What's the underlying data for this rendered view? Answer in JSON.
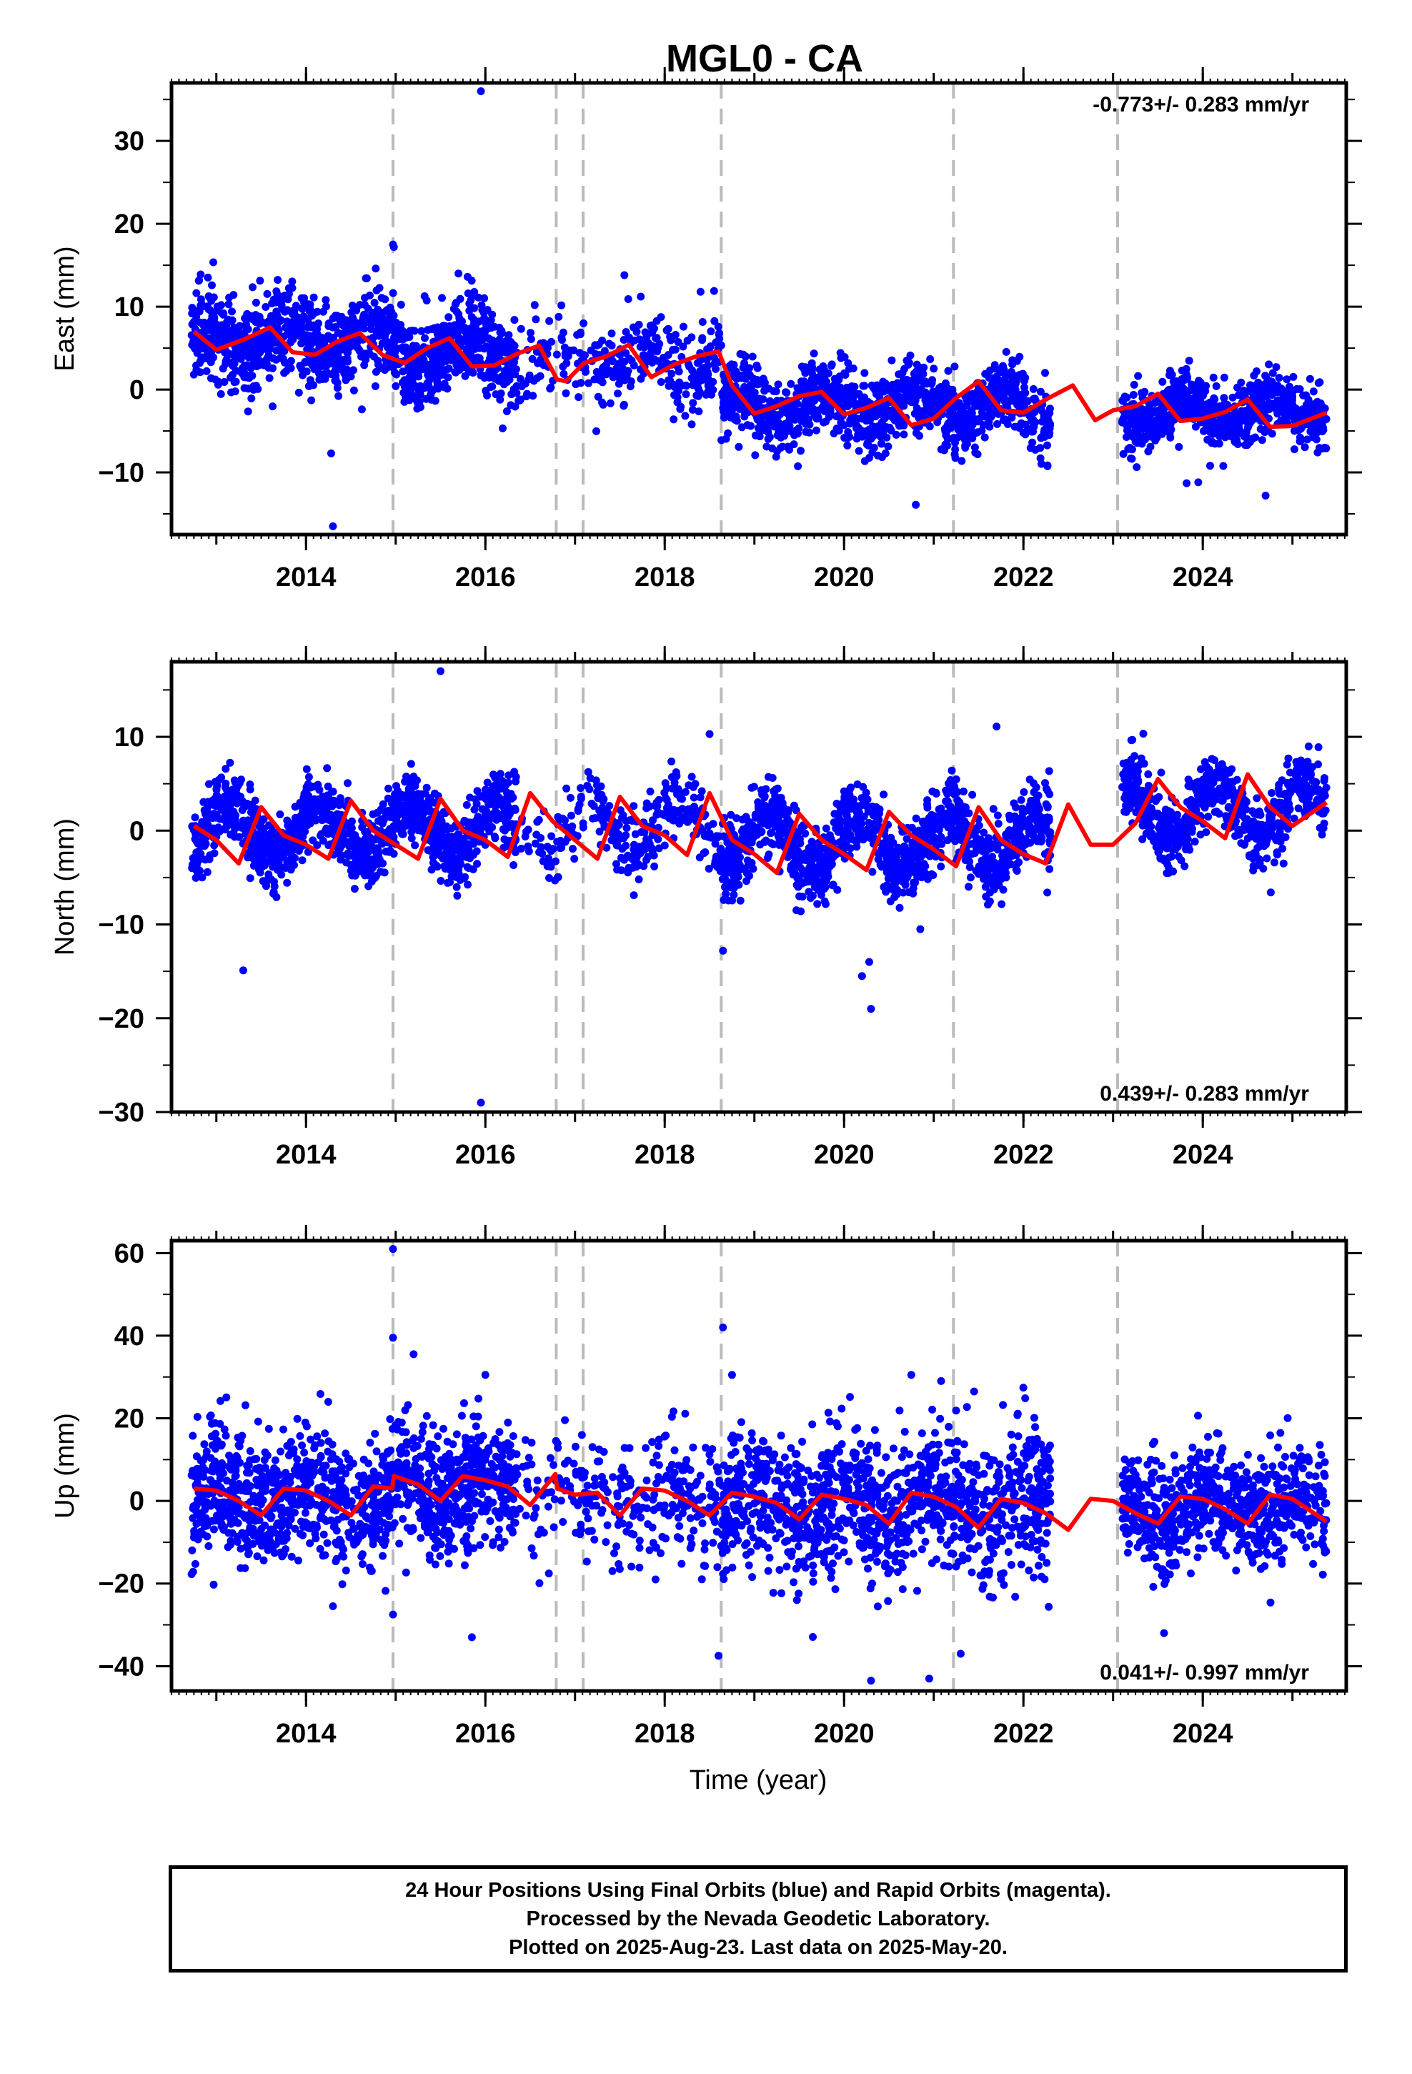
{
  "figure": {
    "title": "MGL0 - CA",
    "xlabel": "Time (year)",
    "footer": {
      "line1": "24 Hour Positions Using Final Orbits (blue) and Rapid Orbits (magenta).",
      "line2": "Processed by the Nevada Geodetic Laboratory.",
      "line3": "Plotted on 2025-Aug-23. Last data on 2025-May-20."
    },
    "colors": {
      "points": "#0000ff",
      "model": "#ff0000",
      "steps": "#bbbbbb",
      "axes": "#000000"
    }
  },
  "chart_data": [
    {
      "type": "scatter",
      "ylabel": "East (mm)",
      "rate_label": "-0.773+/- 0.283 mm/yr",
      "xlim": [
        2012.5,
        2025.6
      ],
      "ylim": [
        -17.5,
        37
      ],
      "xticks": [
        2014,
        2016,
        2018,
        2020,
        2022,
        2024
      ],
      "yticks": [
        -10,
        0,
        10,
        20,
        30
      ],
      "step_lines": [
        2014.97,
        2016.79,
        2017.09,
        2018.63,
        2021.22,
        2023.05
      ],
      "model": {
        "name": "",
        "x": [
          2012.75,
          2013.0,
          2013.3,
          2013.6,
          2013.85,
          2014.1,
          2014.35,
          2014.6,
          2014.85,
          2015.1,
          2015.35,
          2015.6,
          2015.85,
          2016.1,
          2016.35,
          2016.6,
          2016.8,
          2016.9,
          2017.1,
          2017.35,
          2017.6,
          2017.85,
          2018.1,
          2018.35,
          2018.6,
          2018.75,
          2019.0,
          2019.25,
          2019.5,
          2019.75,
          2020.0,
          2020.25,
          2020.5,
          2020.75,
          2021.0,
          2021.25,
          2021.5,
          2021.75,
          2022.0,
          2022.25,
          2022.55,
          2022.8,
          2023.0,
          2023.25,
          2023.5,
          2023.75,
          2024.0,
          2024.25,
          2024.5,
          2024.75,
          2025.0,
          2025.38
        ],
        "y": [
          7.0,
          4.8,
          6.0,
          7.5,
          4.5,
          4.2,
          5.8,
          6.8,
          4.2,
          3.2,
          5.0,
          6.2,
          2.8,
          2.9,
          4.3,
          5.3,
          1.2,
          1.0,
          3.2,
          4.0,
          5.4,
          1.5,
          3.0,
          4.0,
          4.6,
          0.5,
          -2.9,
          -2.0,
          -0.8,
          -0.3,
          -3.0,
          -2.2,
          -1.0,
          -4.3,
          -3.5,
          -1.0,
          1.0,
          -2.5,
          -2.8,
          -1.2,
          0.5,
          -3.7,
          -2.5,
          -2.0,
          -0.5,
          -3.8,
          -3.5,
          -2.7,
          -1.2,
          -4.5,
          -4.4,
          -2.8
        ]
      },
      "points_series": {
        "name": "",
        "segments": [
          {
            "x": [
              2012.72,
              2014.98
            ],
            "base": 6.0,
            "amp": 1.6,
            "phase": 0.45,
            "noise": 2.6,
            "count": 760
          },
          {
            "x": [
              2014.98,
              2016.35
            ],
            "base": 4.5,
            "amp": 1.5,
            "phase": 0.45,
            "noise": 2.6,
            "count": 480
          },
          {
            "x": [
              2016.35,
              2017.05
            ],
            "base": 3.5,
            "amp": 1.2,
            "phase": 0.45,
            "noise": 2.6,
            "count": 60
          },
          {
            "x": [
              2017.05,
              2018.63
            ],
            "base": 3.5,
            "amp": 1.5,
            "phase": 0.45,
            "noise": 2.6,
            "count": 240
          },
          {
            "x": [
              2018.63,
              2022.3
            ],
            "base": -2.0,
            "amp": 1.8,
            "phase": 0.45,
            "noise": 2.2,
            "count": 1150
          },
          {
            "x": [
              2023.1,
              2025.38
            ],
            "base": -2.6,
            "amp": 1.5,
            "phase": 0.45,
            "noise": 2.0,
            "count": 700
          }
        ],
        "outliers": [
          [
            2015.95,
            36.0
          ],
          [
            2014.97,
            17.5
          ],
          [
            2014.98,
            17.2
          ],
          [
            2014.3,
            -16.5
          ],
          [
            2014.28,
            -7.7
          ],
          [
            2020.8,
            -13.9
          ],
          [
            2023.95,
            -11.2
          ],
          [
            2023.82,
            -11.3
          ],
          [
            2024.7,
            -12.8
          ],
          [
            2017.55,
            13.8
          ],
          [
            2015.7,
            14.0
          ],
          [
            2018.4,
            11.8
          ],
          [
            2018.55,
            11.9
          ],
          [
            2016.55,
            10.2
          ]
        ]
      }
    },
    {
      "type": "scatter",
      "ylabel": "North (mm)",
      "rate_label": "0.439+/- 0.283 mm/yr",
      "xlim": [
        2012.5,
        2025.6
      ],
      "ylim": [
        -30,
        18
      ],
      "xticks": [
        2014,
        2016,
        2018,
        2020,
        2022,
        2024
      ],
      "yticks": [
        -30,
        -20,
        -10,
        0,
        10
      ],
      "step_lines": [
        2014.97,
        2016.79,
        2017.09,
        2018.63,
        2021.22,
        2023.05
      ],
      "model": {
        "name": "",
        "x": [
          2012.75,
          2013.0,
          2013.25,
          2013.5,
          2013.75,
          2014.0,
          2014.25,
          2014.5,
          2014.75,
          2015.0,
          2015.25,
          2015.5,
          2015.75,
          2016.0,
          2016.25,
          2016.5,
          2016.75,
          2017.0,
          2017.25,
          2017.5,
          2017.75,
          2018.0,
          2018.25,
          2018.5,
          2018.75,
          2019.0,
          2019.25,
          2019.5,
          2019.75,
          2020.0,
          2020.25,
          2020.5,
          2020.75,
          2021.0,
          2021.25,
          2021.5,
          2021.75,
          2022.0,
          2022.25,
          2022.5,
          2022.75,
          2023.0,
          2023.25,
          2023.5,
          2023.75,
          2024.0,
          2024.25,
          2024.5,
          2024.75,
          2025.0,
          2025.38
        ],
        "y": [
          0.5,
          -1.0,
          -3.5,
          2.5,
          -0.5,
          -1.5,
          -3.0,
          3.2,
          0.0,
          -1.5,
          -3.0,
          3.4,
          0.0,
          -1.0,
          -2.8,
          4.0,
          1.0,
          -1.0,
          -3.0,
          3.6,
          0.5,
          -0.5,
          -2.6,
          4.0,
          -1.0,
          -2.5,
          -4.5,
          1.8,
          -1.0,
          -2.5,
          -4.2,
          2.0,
          -0.5,
          -2.0,
          -3.8,
          2.5,
          -1.0,
          -2.5,
          -3.5,
          2.8,
          -1.5,
          -1.5,
          0.8,
          5.5,
          2.5,
          1.0,
          -0.8,
          6.0,
          2.5,
          0.5,
          3.0
        ]
      },
      "points_series": {
        "name": "",
        "segments": [
          {
            "x": [
              2012.72,
              2014.98
            ],
            "base": 0.0,
            "amp": 2.6,
            "phase": 0.1,
            "noise": 1.8,
            "count": 760
          },
          {
            "x": [
              2014.98,
              2016.35
            ],
            "base": 0.2,
            "amp": 2.7,
            "phase": 0.1,
            "noise": 1.8,
            "count": 480
          },
          {
            "x": [
              2016.35,
              2017.05
            ],
            "base": 0.0,
            "amp": 2.4,
            "phase": 0.1,
            "noise": 1.8,
            "count": 60
          },
          {
            "x": [
              2017.05,
              2018.63
            ],
            "base": 0.5,
            "amp": 2.8,
            "phase": 0.1,
            "noise": 1.8,
            "count": 240
          },
          {
            "x": [
              2018.63,
              2022.3
            ],
            "base": -1.2,
            "amp": 2.8,
            "phase": 0.1,
            "noise": 2.0,
            "count": 1150
          },
          {
            "x": [
              2023.1,
              2025.38
            ],
            "base": 2.2,
            "amp": 2.9,
            "phase": 0.1,
            "noise": 1.8,
            "count": 700
          }
        ],
        "outliers": [
          [
            2015.95,
            -29.0
          ],
          [
            2013.3,
            -14.9
          ],
          [
            2015.5,
            17.0
          ],
          [
            2018.65,
            -12.8
          ],
          [
            2020.3,
            -19.0
          ],
          [
            2020.2,
            -15.5
          ],
          [
            2020.28,
            -14.0
          ],
          [
            2018.5,
            10.3
          ],
          [
            2021.7,
            11.1
          ],
          [
            2020.85,
            -10.5
          ]
        ]
      }
    },
    {
      "type": "scatter",
      "ylabel": "Up (mm)",
      "rate_label": "0.041+/- 0.997 mm/yr",
      "xlim": [
        2012.5,
        2025.6
      ],
      "ylim": [
        -46,
        63
      ],
      "xticks": [
        2014,
        2016,
        2018,
        2020,
        2022,
        2024
      ],
      "yticks": [
        -40,
        -20,
        0,
        20,
        40,
        60
      ],
      "step_lines": [
        2014.97,
        2016.79,
        2017.09,
        2018.63,
        2021.22,
        2023.05
      ],
      "model": {
        "name": "",
        "x": [
          2012.75,
          2013.0,
          2013.25,
          2013.5,
          2013.75,
          2014.0,
          2014.25,
          2014.5,
          2014.75,
          2014.96,
          2014.98,
          2015.25,
          2015.5,
          2015.75,
          2016.0,
          2016.25,
          2016.5,
          2016.78,
          2016.8,
          2017.0,
          2017.25,
          2017.5,
          2017.75,
          2018.0,
          2018.25,
          2018.5,
          2018.75,
          2019.0,
          2019.25,
          2019.5,
          2019.75,
          2020.0,
          2020.25,
          2020.5,
          2020.75,
          2021.0,
          2021.25,
          2021.5,
          2021.75,
          2022.0,
          2022.25,
          2022.5,
          2022.75,
          2023.0,
          2023.25,
          2023.5,
          2023.75,
          2024.0,
          2024.25,
          2024.5,
          2024.75,
          2025.0,
          2025.38
        ],
        "y": [
          3.0,
          2.5,
          0.0,
          -3.5,
          3.0,
          2.5,
          0.0,
          -3.5,
          3.5,
          3.0,
          6.0,
          4.0,
          0.0,
          6.0,
          5.0,
          3.5,
          -1.0,
          6.5,
          3.0,
          1.5,
          2.0,
          -3.5,
          3.0,
          2.5,
          0.0,
          -3.5,
          2.0,
          1.0,
          -0.5,
          -4.5,
          1.5,
          0.5,
          -1.0,
          -5.5,
          2.0,
          1.0,
          -1.5,
          -6.5,
          0.5,
          -0.5,
          -3.0,
          -7.0,
          0.5,
          0.0,
          -3.0,
          -5.5,
          1.0,
          0.5,
          -2.0,
          -5.5,
          1.5,
          0.5,
          -5.0
        ]
      },
      "points_series": {
        "name": "",
        "segments": [
          {
            "x": [
              2012.72,
              2014.98
            ],
            "base": 0.5,
            "amp": 3.0,
            "phase": 0.2,
            "noise": 7.5,
            "count": 760
          },
          {
            "x": [
              2014.98,
              2016.35
            ],
            "base": 3.0,
            "amp": 3.0,
            "phase": 0.2,
            "noise": 8.0,
            "count": 480
          },
          {
            "x": [
              2016.35,
              2017.05
            ],
            "base": 2.0,
            "amp": 3.0,
            "phase": 0.2,
            "noise": 7.0,
            "count": 60
          },
          {
            "x": [
              2017.05,
              2018.63
            ],
            "base": 0.5,
            "amp": 3.0,
            "phase": 0.2,
            "noise": 8.0,
            "count": 240
          },
          {
            "x": [
              2018.63,
              2022.3
            ],
            "base": -1.5,
            "amp": 3.5,
            "phase": 0.2,
            "noise": 8.5,
            "count": 1150
          },
          {
            "x": [
              2023.1,
              2025.38
            ],
            "base": -1.5,
            "amp": 3.0,
            "phase": 0.2,
            "noise": 6.5,
            "count": 700
          }
        ],
        "outliers": [
          [
            2014.97,
            61.0
          ],
          [
            2018.65,
            42.0
          ],
          [
            2014.97,
            39.5
          ],
          [
            2015.2,
            35.5
          ],
          [
            2020.3,
            -43.5
          ],
          [
            2020.95,
            -43.0
          ],
          [
            2021.3,
            -37.0
          ],
          [
            2018.6,
            -37.5
          ],
          [
            2014.97,
            -27.5
          ],
          [
            2015.85,
            -33.0
          ],
          [
            2020.75,
            30.5
          ],
          [
            2016.0,
            30.5
          ],
          [
            2018.75,
            30.5
          ],
          [
            2014.3,
            -25.5
          ],
          [
            2021.45,
            26.5
          ]
        ]
      }
    }
  ]
}
